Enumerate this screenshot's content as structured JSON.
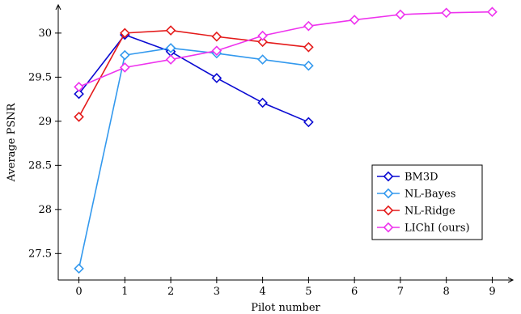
{
  "chart_data": {
    "type": "line",
    "xlabel": "Pilot number",
    "ylabel": "Average PSNR",
    "xlim": [
      -0.45,
      9.45
    ],
    "ylim": [
      27.2,
      30.32
    ],
    "xticks": [
      0,
      1,
      2,
      3,
      4,
      5,
      6,
      7,
      8,
      9
    ],
    "yticks": [
      27.5,
      28,
      28.5,
      29,
      29.5,
      30
    ],
    "ytick_labels": [
      "27.5",
      "28",
      "28.5",
      "29",
      "29.5",
      "30"
    ],
    "grid": false,
    "legend_position": "bottom-right",
    "marker": "diamond",
    "series": [
      {
        "name": "BM3D",
        "color": "#0a0ad2",
        "x": [
          0,
          1,
          2,
          3,
          4,
          5
        ],
        "values": [
          29.31,
          29.98,
          29.79,
          29.49,
          29.21,
          28.99
        ]
      },
      {
        "name": "NL-Bayes",
        "color": "#3399ee",
        "x": [
          0,
          1,
          2,
          3,
          4,
          5
        ],
        "values": [
          27.33,
          29.75,
          29.83,
          29.77,
          29.7,
          29.63
        ]
      },
      {
        "name": "NL-Ridge",
        "color": "#e41a1a",
        "x": [
          0,
          1,
          2,
          3,
          4,
          5
        ],
        "values": [
          29.05,
          30.0,
          30.03,
          29.96,
          29.9,
          29.84
        ]
      },
      {
        "name": "LIChI (ours)",
        "color": "#ee33ee",
        "x": [
          0,
          1,
          2,
          3,
          4,
          5,
          6,
          7,
          8,
          9
        ],
        "values": [
          29.39,
          29.61,
          29.7,
          29.8,
          29.97,
          30.08,
          30.15,
          30.21,
          30.23,
          30.24
        ]
      }
    ]
  }
}
